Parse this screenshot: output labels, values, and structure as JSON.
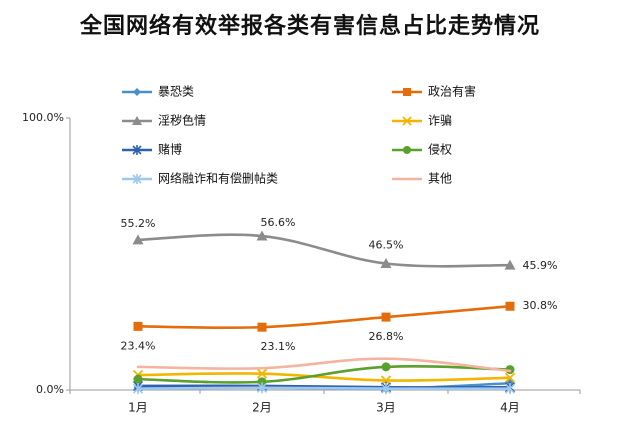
{
  "chart_data": {
    "type": "line",
    "title": "全国网络有效举报各类有害信息占比走势情况",
    "categories": [
      "1月",
      "2月",
      "3月",
      "4月"
    ],
    "ylim": [
      0,
      100
    ],
    "yticks": [
      "0.0%",
      "100.0%"
    ],
    "legend_placement": "top",
    "series": [
      {
        "name": "暴恐类",
        "color": "#4a8fc8",
        "marker": "diamond",
        "values": [
          1.0,
          1.0,
          0.5,
          2.5
        ]
      },
      {
        "name": "政治有害",
        "color": "#e46c0a",
        "marker": "square",
        "values": [
          23.4,
          23.1,
          26.8,
          30.8
        ],
        "labels": [
          "23.4%",
          "23.1%",
          "26.8%",
          "30.8%"
        ]
      },
      {
        "name": "淫秽色情",
        "color": "#8c8c8c",
        "marker": "triangle",
        "values": [
          55.2,
          56.6,
          46.5,
          45.9
        ],
        "labels": [
          "55.2%",
          "56.6%",
          "46.5%",
          "45.9%"
        ]
      },
      {
        "name": "诈骗",
        "color": "#f2b600",
        "marker": "x",
        "values": [
          5.5,
          6.0,
          3.5,
          4.5
        ]
      },
      {
        "name": "赌博",
        "color": "#3060b0",
        "marker": "star",
        "values": [
          1.5,
          1.5,
          1.0,
          1.0
        ]
      },
      {
        "name": "侵权",
        "color": "#5aa02c",
        "marker": "circle",
        "values": [
          4.0,
          3.0,
          8.5,
          7.5
        ]
      },
      {
        "name": "网络融诈和有偿删帖类",
        "color": "#9ec8ec",
        "marker": "star",
        "values": [
          0.5,
          0.8,
          0.5,
          0.5
        ]
      },
      {
        "name": "其他",
        "color": "#f4b4a0",
        "marker": "none",
        "values": [
          8.5,
          8.0,
          11.5,
          7.0
        ]
      }
    ]
  }
}
